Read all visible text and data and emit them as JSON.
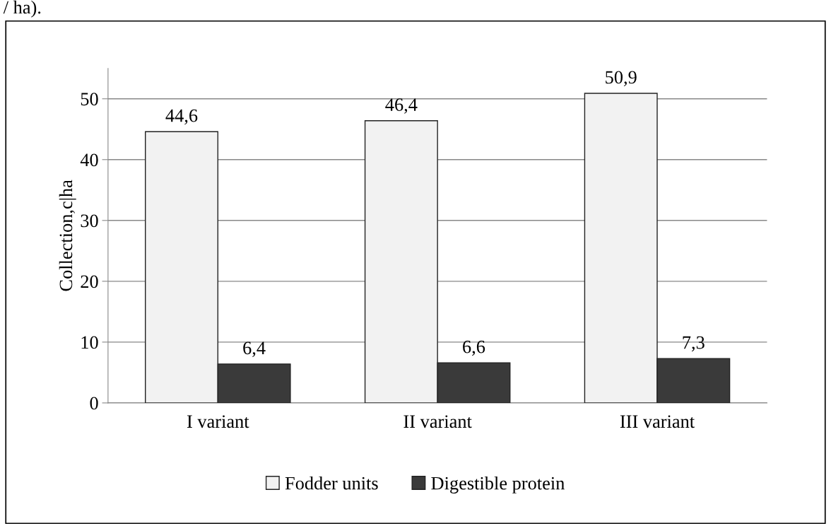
{
  "chart_data": {
    "type": "bar",
    "ylabel": "Collection,c|ha",
    "categories": [
      "I variant",
      "II variant",
      "III variant"
    ],
    "series": [
      {
        "name": "Fodder units",
        "color": "#f2f2f2",
        "values": [
          44.6,
          46.4,
          50.9
        ],
        "value_labels": [
          "44,6",
          "46,4",
          "50,9"
        ]
      },
      {
        "name": "Digestible protein",
        "color": "#3a3a3a",
        "values": [
          6.4,
          6.6,
          7.3
        ],
        "value_labels": [
          "6,4",
          "6,6",
          "7,3"
        ]
      }
    ],
    "ylim": [
      0,
      55
    ],
    "yticks": [
      0,
      10,
      20,
      30,
      40,
      50
    ],
    "grid": "y",
    "legend": "bottom",
    "annotations": [
      "/ ha)."
    ]
  }
}
